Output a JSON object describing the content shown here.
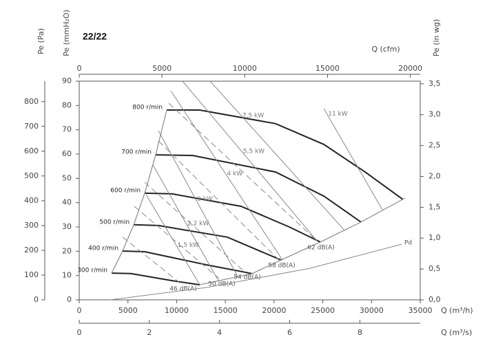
{
  "chart_data": {
    "type": "line",
    "title": "22/22",
    "xlabel": "Q (m³/h)",
    "xlim": [
      0,
      35000
    ],
    "xticks": [
      0,
      5000,
      10000,
      15000,
      20000,
      25000,
      30000,
      35000
    ],
    "x2label": "Q (cfm)",
    "x2lim": [
      0,
      20600
    ],
    "x2ticks": [
      0,
      5000,
      10000,
      15000,
      20000
    ],
    "x3label": "Q (m³/s)",
    "x3lim": [
      0,
      9.722
    ],
    "x3ticks": [
      0,
      2,
      4,
      6,
      8
    ],
    "ylabel": "Pe (mmH₂O)",
    "ylim": [
      0,
      90
    ],
    "yticks": [
      0,
      10,
      20,
      30,
      40,
      50,
      60,
      70,
      80,
      90
    ],
    "y2label": "Pe (in wg)",
    "y2lim": [
      0,
      3.543
    ],
    "y2ticks": [
      {
        "value": 0,
        "label": "0,0"
      },
      {
        "value": 0.5,
        "label": "0,5"
      },
      {
        "value": 1,
        "label": "1,0"
      },
      {
        "value": 1.5,
        "label": "1,5"
      },
      {
        "value": 2,
        "label": "2,0"
      },
      {
        "value": 2.5,
        "label": "2,5"
      },
      {
        "value": 3,
        "label": "3,0"
      },
      {
        "value": 3.5,
        "label": "3,5"
      }
    ],
    "y3label": "Pe (Pa)",
    "y3lim": [
      0,
      882.6
    ],
    "y3ticks": [
      0,
      100,
      200,
      300,
      400,
      500,
      600,
      700,
      800
    ],
    "series": [
      {
        "name": "800 r/min",
        "color": "#222222",
        "width": 2,
        "x": [
          8980,
          12370,
          20150,
          25100,
          29340,
          33230
        ],
        "values": [
          78.1,
          78.1,
          72.5,
          64,
          52.6,
          41.3
        ]
      },
      {
        "name": "700 r/min",
        "color": "#222222",
        "width": 2,
        "x": [
          7850,
          11670,
          20150,
          25100,
          28920
        ],
        "values": [
          59.7,
          59.4,
          52.6,
          42.7,
          32
        ]
      },
      {
        "name": "600 r/min",
        "color": "#222222",
        "width": 2,
        "x": [
          6720,
          9545,
          16610,
          21560,
          24750
        ],
        "values": [
          43.9,
          43.6,
          38.5,
          30,
          23.8
        ]
      },
      {
        "name": "500 r/min",
        "color": "#222222",
        "width": 2,
        "x": [
          5590,
          8130,
          15200,
          20720
        ],
        "values": [
          30.9,
          30.6,
          25.8,
          16.4
        ]
      },
      {
        "name": "400 r/min",
        "color": "#222222",
        "width": 2,
        "x": [
          4450,
          6720,
          13080,
          17750
        ],
        "values": [
          20.1,
          19.8,
          14.4,
          10.8
        ]
      },
      {
        "name": "300 r/min",
        "color": "#222222",
        "width": 2,
        "x": [
          3320,
          5300,
          9545,
          12370
        ],
        "values": [
          11,
          10.8,
          7.9,
          6.2
        ]
      },
      {
        "color": "#888888",
        "width": 1.2,
        "x": [
          3320,
          4450,
          5590,
          6720,
          7850,
          8980
        ],
        "values": [
          11,
          20.1,
          30.9,
          43.9,
          59.7,
          78.1
        ]
      },
      {
        "color": "#888888",
        "width": 1.2,
        "x": [
          12370,
          17750,
          20720,
          24750,
          28920,
          33440
        ],
        "values": [
          6.2,
          10.8,
          16.4,
          23.8,
          32,
          41.9
        ]
      },
      {
        "name": "1,5 kW",
        "color": "#888888",
        "width": 1,
        "x": [
          6859,
          12374
        ],
        "values": [
          43.3,
          6.2
        ]
      },
      {
        "name": "2,2 kW",
        "color": "#888888",
        "width": 1,
        "x": [
          7566,
          14354
        ],
        "values": [
          55.5,
          7.4
        ]
      },
      {
        "name": "3 kW",
        "color": "#888888",
        "width": 1,
        "x": [
          8131,
          16263
        ],
        "values": [
          69.6,
          9.6
        ]
      },
      {
        "name": "4 kW",
        "color": "#888888",
        "width": 1,
        "x": [
          9404,
          20859
        ],
        "values": [
          86,
          16.4
        ]
      },
      {
        "name": "5,5 kW",
        "color": "#888888",
        "width": 1,
        "x": [
          10606,
          24394
        ],
        "values": [
          90,
          24.3
        ]
      },
      {
        "name": "7,5 kW",
        "color": "#888888",
        "width": 1,
        "x": [
          13434,
          27222
        ],
        "values": [
          90,
          28.6
        ]
      },
      {
        "name": "11 kW",
        "color": "#888888",
        "width": 1,
        "x": [
          25101,
          31111
        ],
        "values": [
          78.7,
          37.1
        ]
      },
      {
        "name": "46 dB(A)",
        "color": "#888888",
        "width": 1,
        "dash": true,
        "x": [
          4455,
          10394
        ],
        "values": [
          25.8,
          6.8
        ]
      },
      {
        "name": "50 dB(A)",
        "color": "#888888",
        "width": 1,
        "dash": true,
        "x": [
          5657,
          14354
        ],
        "values": [
          38.5,
          8.8
        ]
      },
      {
        "name": "54 dB(A)",
        "color": "#888888",
        "width": 1,
        "dash": true,
        "x": [
          6717,
          16970
        ],
        "values": [
          48.4,
          11.6
        ]
      },
      {
        "name": "58 dB(A)",
        "color": "#888888",
        "width": 1,
        "dash": true,
        "x": [
          8131,
          20505
        ],
        "values": [
          65.4,
          16.4
        ]
      },
      {
        "name": "62 dB(A)",
        "color": "#888888",
        "width": 1,
        "dash": true,
        "x": [
          9192,
          24535
        ],
        "values": [
          80.9,
          23.8
        ]
      },
      {
        "name": "Pd",
        "color": "#888888",
        "width": 1,
        "x": [
          3182,
          13080,
          23690,
          33090
        ],
        "values": [
          0,
          5.1,
          13,
          22.9
        ]
      }
    ]
  }
}
